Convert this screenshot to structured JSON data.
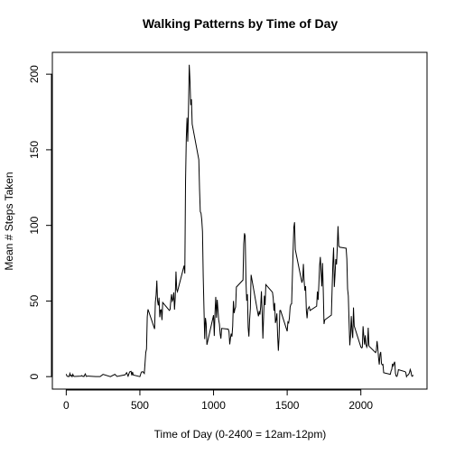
{
  "chart_data": {
    "type": "line",
    "title": "Walking Patterns by Time of Day",
    "xlabel": "Time of Day (0-2400 = 12am-12pm)",
    "ylabel": "Mean # Steps Taken",
    "color": "#000000",
    "xlim": [
      -94.2,
      2449.2
    ],
    "ylim": [
      -8.25,
      214.42
    ],
    "xticks": [
      0,
      500,
      1000,
      1500,
      2000
    ],
    "yticks": [
      0,
      50,
      100,
      150,
      200
    ],
    "x": [
      0,
      5,
      10,
      15,
      20,
      25,
      30,
      35,
      40,
      45,
      50,
      55,
      100,
      105,
      110,
      115,
      120,
      125,
      130,
      135,
      140,
      145,
      150,
      200,
      230,
      250,
      300,
      330,
      345,
      400,
      410,
      420,
      430,
      440,
      445,
      450,
      455,
      500,
      510,
      520,
      530,
      540,
      545,
      550,
      555,
      600,
      605,
      610,
      615,
      620,
      625,
      630,
      635,
      640,
      645,
      650,
      655,
      700,
      705,
      710,
      715,
      720,
      725,
      730,
      735,
      740,
      745,
      750,
      755,
      800,
      805,
      810,
      815,
      820,
      825,
      830,
      835,
      840,
      845,
      850,
      855,
      900,
      905,
      910,
      915,
      920,
      925,
      930,
      935,
      940,
      945,
      950,
      955,
      1000,
      1005,
      1010,
      1015,
      1020,
      1025,
      1030,
      1035,
      1040,
      1045,
      1050,
      1055,
      1100,
      1105,
      1110,
      1115,
      1120,
      1125,
      1130,
      1135,
      1140,
      1145,
      1150,
      1155,
      1200,
      1205,
      1210,
      1215,
      1220,
      1225,
      1230,
      1235,
      1240,
      1245,
      1250,
      1255,
      1300,
      1305,
      1310,
      1315,
      1320,
      1325,
      1330,
      1335,
      1340,
      1345,
      1350,
      1355,
      1400,
      1405,
      1410,
      1415,
      1420,
      1425,
      1430,
      1435,
      1440,
      1445,
      1450,
      1455,
      1500,
      1505,
      1510,
      1515,
      1520,
      1525,
      1530,
      1535,
      1540,
      1545,
      1550,
      1555,
      1600,
      1605,
      1610,
      1615,
      1620,
      1625,
      1630,
      1635,
      1640,
      1645,
      1650,
      1655,
      1700,
      1705,
      1710,
      1715,
      1720,
      1725,
      1730,
      1735,
      1740,
      1745,
      1750,
      1755,
      1800,
      1805,
      1810,
      1815,
      1820,
      1825,
      1830,
      1835,
      1840,
      1845,
      1850,
      1855,
      1900,
      1905,
      1910,
      1915,
      1920,
      1925,
      1930,
      1935,
      1940,
      1945,
      1950,
      1955,
      2000,
      2005,
      2010,
      2015,
      2020,
      2025,
      2030,
      2035,
      2040,
      2045,
      2050,
      2055,
      2100,
      2105,
      2110,
      2115,
      2120,
      2125,
      2130,
      2135,
      2140,
      2145,
      2150,
      2155,
      2200,
      2205,
      2210,
      2215,
      2220,
      2225,
      2230,
      2235,
      2240,
      2245,
      2250,
      2255,
      2300,
      2305,
      2310,
      2315,
      2320,
      2325,
      2330,
      2335,
      2340,
      2345,
      2350,
      2355
    ],
    "series": [
      {
        "name": "Mean # Steps Taken",
        "color": "#000000",
        "values": [
          1.7,
          0.3,
          0.1,
          0.2,
          0.1,
          2.1,
          0.5,
          0.9,
          0,
          1.5,
          0.3,
          0.1,
          0.3,
          0.7,
          0.2,
          0.3,
          0,
          1.1,
          1.8,
          0.2,
          0.2,
          0.4,
          0.3,
          0,
          0,
          1.5,
          0,
          1.5,
          0.1,
          1.2,
          2.6,
          0.3,
          3.1,
          3.5,
          0.8,
          3.1,
          1.1,
          0,
          3,
          3.3,
          2.1,
          16,
          18.3,
          39.5,
          44.5,
          31.5,
          49.3,
          53.8,
          63.5,
          50,
          47.1,
          52.2,
          39.3,
          44,
          44.2,
          37.4,
          49,
          43.8,
          44.4,
          50.5,
          54.5,
          49.9,
          51,
          55.7,
          44.3,
          52.3,
          69.5,
          57.8,
          56.2,
          73.4,
          68.2,
          129.4,
          157.5,
          171.2,
          155.4,
          177.3,
          206.2,
          195.9,
          179.6,
          183.4,
          167,
          143.5,
          124,
          109.1,
          108.1,
          103.7,
          95.9,
          66.2,
          45.2,
          24.8,
          38.8,
          35,
          21.1,
          40.6,
          26.9,
          42.4,
          52.7,
          38.9,
          50.8,
          44.3,
          37.4,
          34.7,
          28.3,
          25.1,
          31.9,
          31.4,
          29.7,
          21.3,
          25.5,
          28.4,
          26.5,
          33.4,
          50,
          42,
          44.6,
          46,
          59.2,
          63.9,
          87.7,
          94.8,
          92.8,
          63.4,
          50.2,
          54.5,
          32.4,
          26.5,
          37.7,
          45.1,
          67.3,
          42.3,
          39.9,
          43.3,
          41,
          46.2,
          56.4,
          42.8,
          25.1,
          40,
          53.5,
          47.3,
          60.8,
          55.8,
          52,
          43.6,
          48.7,
          35.5,
          37.5,
          41.8,
          27.5,
          17.1,
          26.1,
          43.6,
          43.8,
          30,
          36.1,
          35.5,
          38.8,
          46,
          47.8,
          48.1,
          65.3,
          82.9,
          98.7,
          102.1,
          84,
          62.1,
          64.1,
          74.5,
          63.2,
          56.9,
          59.8,
          43.9,
          38.6,
          44.7,
          45.5,
          46.2,
          43.7,
          46.6,
          56.3,
          50.7,
          61.2,
          73.4,
          79.1,
          68.9,
          59.7,
          75.1,
          56.5,
          34.8,
          37.5,
          40.7,
          58,
          74.7,
          85.3,
          59.3,
          67.8,
          77.7,
          74.2,
          85.3,
          99.5,
          86.6,
          85.6,
          84.9,
          77.8,
          58,
          53.4,
          36.3,
          20.7,
          27.4,
          40,
          30.2,
          25.5,
          45.7,
          33.5,
          19.6,
          19,
          19.3,
          33.3,
          26.8,
          21.2,
          27.3,
          21.3,
          19.5,
          21.3,
          32.3,
          20.2,
          15.9,
          17.2,
          23.5,
          19.2,
          12.5,
          8,
          14.7,
          16.3,
          8.7,
          7.8,
          8.1,
          2.6,
          1.5,
          3.7,
          4.8,
          8.5,
          7.1,
          8.7,
          9.8,
          2.2,
          0.3,
          0.1,
          1.6,
          4.6,
          3.3,
          2.8,
          0,
          0.8,
          1,
          1.6,
          2.6,
          4.7,
          3.3,
          0.6,
          0.2,
          1.1
        ]
      }
    ]
  }
}
